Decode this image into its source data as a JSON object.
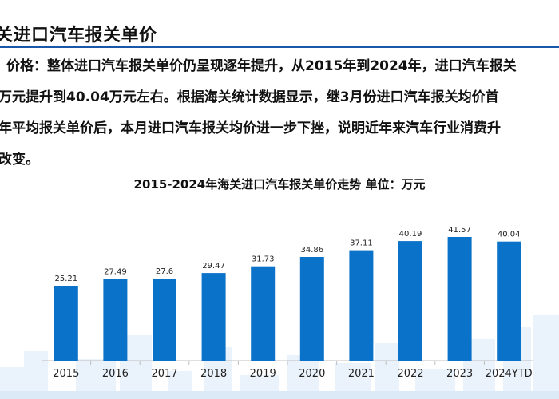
{
  "header": {
    "title": "关进口汽车报关单价"
  },
  "paragraph": {
    "lines": [
      "价格：整体进口汽车报关单价仍呈现逐年提升，从2015年到2024年，进口汽车报关",
      "万元提升到40.04万元左右。根据海关统计数据显示，继3月份进口汽车报关均价首",
      "年平均报关单价后，本月进口汽车报关均价进一步下挫，说明近年来汽车行业消费升",
      "改变。"
    ]
  },
  "colors": {
    "accent": "#1a57a8",
    "bar": "#0a72c8",
    "skyline": "#e6f0fa"
  },
  "chart_data": {
    "type": "bar",
    "title": "2015-2024年海关进口汽车报关单价走势  单位：万元",
    "categories": [
      "2015",
      "2016",
      "2017",
      "2018",
      "2019",
      "2020",
      "2021",
      "2022",
      "2023",
      "2024YTD"
    ],
    "values": [
      25.21,
      27.49,
      27.6,
      29.47,
      31.73,
      34.86,
      37.11,
      40.19,
      41.57,
      40.04
    ],
    "value_labels": [
      "25.21",
      "27.49",
      "27.6",
      "29.47",
      "31.73",
      "34.86",
      "37.11",
      "40.19",
      "41.57",
      "40.04"
    ],
    "ylim": [
      0,
      45
    ],
    "xlabel": "",
    "ylabel": "",
    "grid": false
  }
}
